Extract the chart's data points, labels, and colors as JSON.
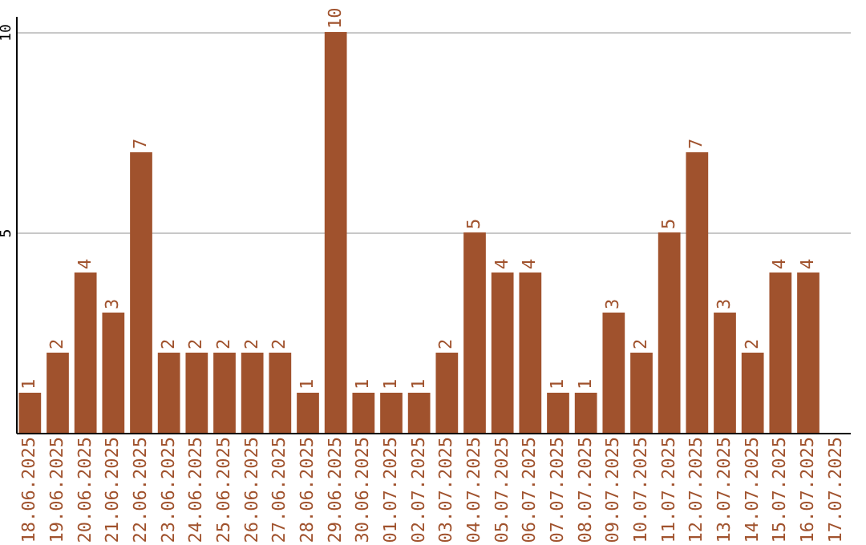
{
  "chart_data": {
    "type": "bar",
    "categories": [
      "18.06.2025",
      "19.06.2025",
      "20.06.2025",
      "21.06.2025",
      "22.06.2025",
      "23.06.2025",
      "24.06.2025",
      "25.06.2025",
      "26.06.2025",
      "27.06.2025",
      "28.06.2025",
      "29.06.2025",
      "30.06.2025",
      "01.07.2025",
      "02.07.2025",
      "03.07.2025",
      "04.07.2025",
      "05.07.2025",
      "06.07.2025",
      "07.07.2025",
      "08.07.2025",
      "09.07.2025",
      "10.07.2025",
      "11.07.2025",
      "12.07.2025",
      "13.07.2025",
      "14.07.2025",
      "15.07.2025",
      "16.07.2025",
      "17.07.2025"
    ],
    "values": [
      1,
      2,
      4,
      3,
      7,
      2,
      2,
      2,
      2,
      2,
      1,
      10,
      1,
      1,
      1,
      2,
      5,
      4,
      4,
      1,
      1,
      3,
      2,
      5,
      7,
      3,
      2,
      4,
      4,
      null
    ],
    "color": "#a0522d",
    "ylim": [
      0,
      10.4
    ],
    "yticks": [
      5,
      10
    ],
    "grid": "y",
    "data_labels": true
  }
}
